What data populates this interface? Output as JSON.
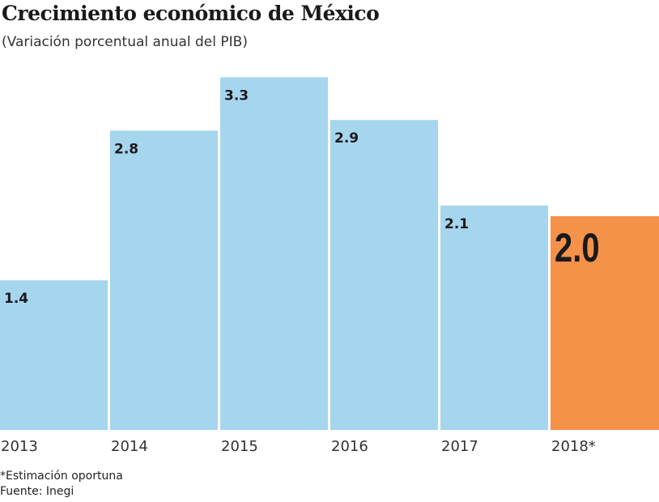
{
  "chart_data": {
    "type": "bar",
    "title": "Crecimiento económico de México",
    "subtitle": "(Variación porcentual anual del PIB)",
    "categories": [
      "2013",
      "2014",
      "2015",
      "2016",
      "2017",
      "2018*"
    ],
    "values": [
      1.4,
      2.8,
      3.3,
      2.9,
      2.1,
      2.0
    ],
    "data_labels": [
      "1.4",
      "2.8",
      "3.3",
      "2.9",
      "2.1",
      "2.0"
    ],
    "highlight_index": 5,
    "colors": {
      "bar": "#a6d5ee",
      "highlight": "#f4924a"
    },
    "grid": false,
    "ylim": [
      0,
      3.4
    ]
  },
  "footnote": "*Estimación oportuna",
  "source": "Fuente: Inegi"
}
